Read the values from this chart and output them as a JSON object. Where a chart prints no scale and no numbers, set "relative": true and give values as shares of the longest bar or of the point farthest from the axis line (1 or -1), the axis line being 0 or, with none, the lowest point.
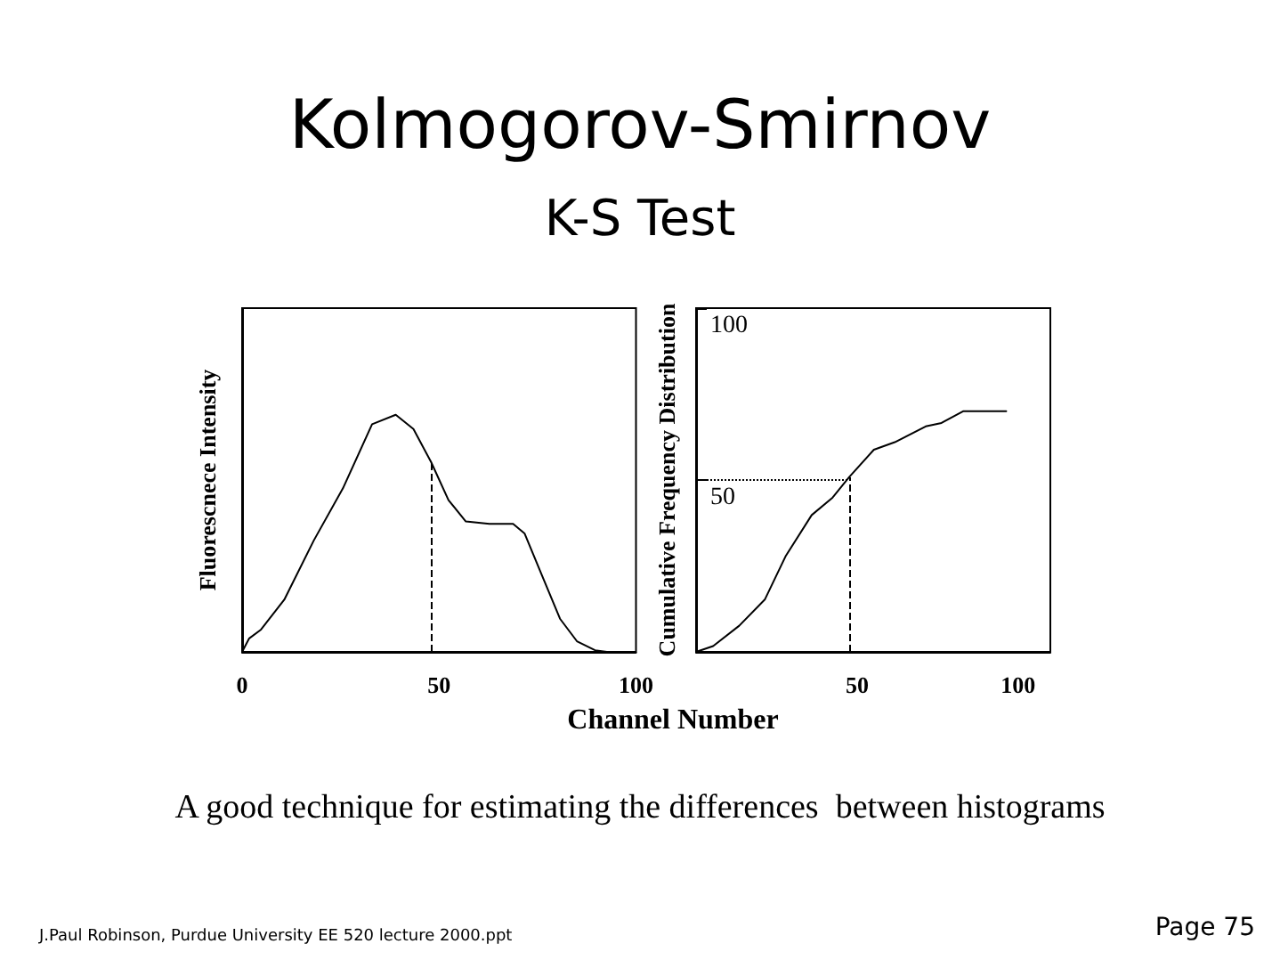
{
  "chart_data": [
    {
      "type": "line",
      "title": "Kolmogorov-Smirnov",
      "subtitle": "K-S Test",
      "xlabel": "Channel Number",
      "ylabel": "Fluorescnece Intensity",
      "relative": true,
      "color": "#000000",
      "marker": "none",
      "line_style": "solid",
      "x": [
        0,
        1.8,
        4.8,
        10.7,
        18.2,
        25.6,
        33,
        39,
        43.5,
        48,
        52.4,
        56.8,
        62.8,
        68.8,
        71.7,
        76.2,
        80.7,
        85,
        89.6,
        92.6
      ],
      "values": [
        0,
        0.057,
        0.094,
        0.22,
        0.47,
        0.69,
        0.96,
        1.0,
        0.94,
        0.8,
        0.64,
        0.55,
        0.54,
        0.54,
        0.5,
        0.32,
        0.14,
        0.045,
        0.007,
        0
      ],
      "xlim": [
        0,
        100
      ],
      "xticks": [
        0,
        50,
        100
      ],
      "ref_lines": [
        {
          "axis": "x",
          "value": 48,
          "line_style": "dashed",
          "color": "#000000"
        }
      ],
      "annotations": [
        "A good technique for estimating the differences  between histograms",
        "J.Paul Robinson, Purdue University EE 520 lecture 2000.ppt",
        "Page 75"
      ]
    },
    {
      "type": "line",
      "ylabel": "Cumulative Frequency Distribution",
      "color": "#000000",
      "marker": "none",
      "line_style": "solid",
      "x": [
        0,
        5.3,
        13.4,
        21.4,
        27.9,
        35.9,
        42.4,
        47.5,
        55.2,
        61.7,
        71.3,
        76.2,
        82.9,
        96.3
      ],
      "values": [
        0,
        1.7,
        7.6,
        15.3,
        28,
        39.8,
        44.9,
        50.8,
        58.8,
        61,
        65.6,
        66.6,
        70,
        70
      ],
      "xlim": [
        0,
        110
      ],
      "xticks": [
        50,
        100
      ],
      "ylim": [
        0,
        100
      ],
      "yticks": [
        50,
        100
      ],
      "ref_lines": [
        {
          "axis": "y",
          "value": 50,
          "line_style": "dotted",
          "color": "#000000"
        },
        {
          "axis": "x",
          "value": 47.5,
          "line_style": "dashed",
          "color": "#000000"
        }
      ]
    }
  ]
}
